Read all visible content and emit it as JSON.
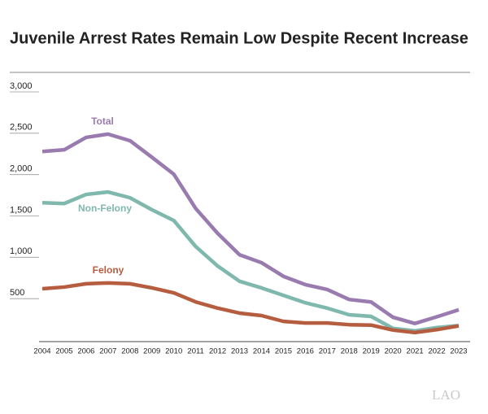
{
  "chart_data": {
    "type": "line",
    "title": "Juvenile Arrest Rates Remain Low Despite Recent Increase",
    "categories": [
      "2004",
      "2005",
      "2006",
      "2007",
      "2008",
      "2009",
      "2010",
      "2011",
      "2012",
      "2013",
      "2014",
      "2015",
      "2016",
      "2017",
      "2018",
      "2019",
      "2020",
      "2021",
      "2022",
      "2023"
    ],
    "series": [
      {
        "name": "Total",
        "color": "#9a7bb0",
        "values": [
          2280,
          2300,
          2450,
          2490,
          2410,
          2210,
          2005,
          1590,
          1290,
          1030,
          935,
          770,
          670,
          610,
          490,
          460,
          275,
          200,
          280,
          365
        ]
      },
      {
        "name": "Non-Felony",
        "color": "#7fb8ad",
        "values": [
          1660,
          1650,
          1760,
          1790,
          1720,
          1575,
          1445,
          1130,
          895,
          710,
          630,
          540,
          450,
          385,
          305,
          285,
          140,
          110,
          150,
          175
        ]
      },
      {
        "name": "Felony",
        "color": "#b65d3f",
        "values": [
          620,
          640,
          680,
          690,
          680,
          630,
          570,
          460,
          385,
          325,
          295,
          225,
          205,
          205,
          185,
          180,
          120,
          90,
          125,
          170
        ]
      }
    ],
    "ylim": [
      0,
      3000
    ],
    "yticks": [
      500,
      {
        "value": 1000,
        "label": "1,000"
      },
      {
        "value": 1500,
        "label": "1,500"
      },
      {
        "value": 2000,
        "label": "2,000"
      },
      {
        "value": 2500,
        "label": "2,500"
      },
      {
        "value": 3000,
        "label": "3,000"
      }
    ],
    "footer": "LAO"
  }
}
